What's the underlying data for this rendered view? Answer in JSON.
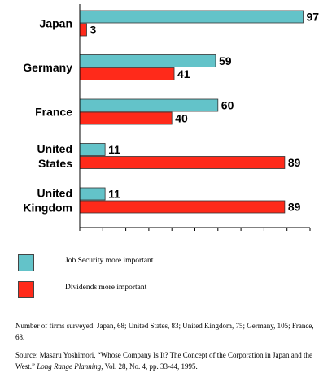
{
  "chart_data": {
    "type": "bar",
    "orientation": "horizontal",
    "categories": [
      [
        "Japan"
      ],
      [
        "Germany"
      ],
      [
        "France"
      ],
      [
        "United",
        "States"
      ],
      [
        "United",
        "Kingdom"
      ]
    ],
    "series": [
      {
        "name": "Job Security more important",
        "values": [
          97,
          59,
          60,
          11,
          11
        ],
        "color": "#63c3c9"
      },
      {
        "name": "Dividends more important",
        "values": [
          3,
          41,
          40,
          89,
          89
        ],
        "color": "#ff2a1a"
      }
    ],
    "xlim": [
      0,
      100
    ],
    "x_tick_step": 10,
    "grid": false,
    "legend_position": "bottom-left"
  },
  "legend": {
    "job_security": "Job Security more important",
    "dividends": "Dividends more important"
  },
  "notes": {
    "surveyed": "Number of firms surveyed: Japan, 68; United States, 83; United Kingdom, 75; Germany, 105; France, 68.",
    "source_main": "Source: Masaru Yoshimori, “Whose Company Is It? The Concept of the Corporation in Japan and the West.”",
    "source_journal": "Long Range Planning",
    "source_tail": ", Vol. 28, No. 4, pp. 33-44, 1995."
  }
}
